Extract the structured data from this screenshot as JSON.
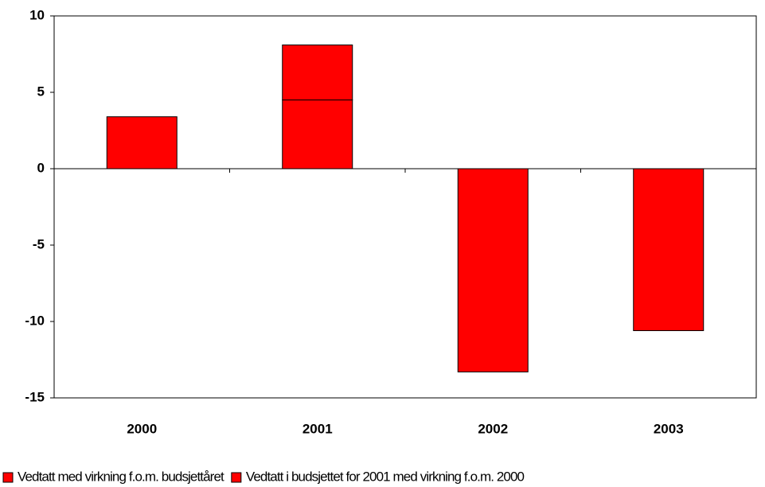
{
  "chart_data": {
    "type": "bar",
    "stacked": true,
    "categories": [
      "2000",
      "2001",
      "2002",
      "2003"
    ],
    "series": [
      {
        "name": "Vedtatt med virkning f.o.m. budsjettåret",
        "color": "#ff0000",
        "values": [
          3.4,
          4.5,
          -13.3,
          -10.6
        ]
      },
      {
        "name": "Vedtatt i budsjettet for 2001 med virkning f.o.m. 2000",
        "color": "#ff0000",
        "values": [
          0,
          3.6,
          0,
          0
        ]
      }
    ],
    "ylim": [
      -15,
      10
    ],
    "yticks": [
      -15,
      -10,
      -5,
      0,
      5,
      10
    ],
    "legend": "bottom"
  }
}
